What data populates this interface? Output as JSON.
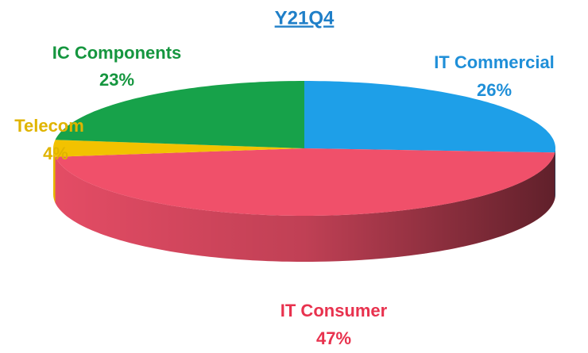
{
  "chart_data": {
    "type": "pie",
    "title": "Y21Q4",
    "categories": [
      "IT Commercial",
      "IT Consumer",
      "Telecom",
      "IC Components"
    ],
    "values": [
      26,
      47,
      4,
      23
    ],
    "value_labels": [
      "26%",
      "47%",
      "4%",
      "23%"
    ],
    "colors": [
      "#1e9fe8",
      "#f0506a",
      "#f2c200",
      "#17a24a"
    ]
  }
}
